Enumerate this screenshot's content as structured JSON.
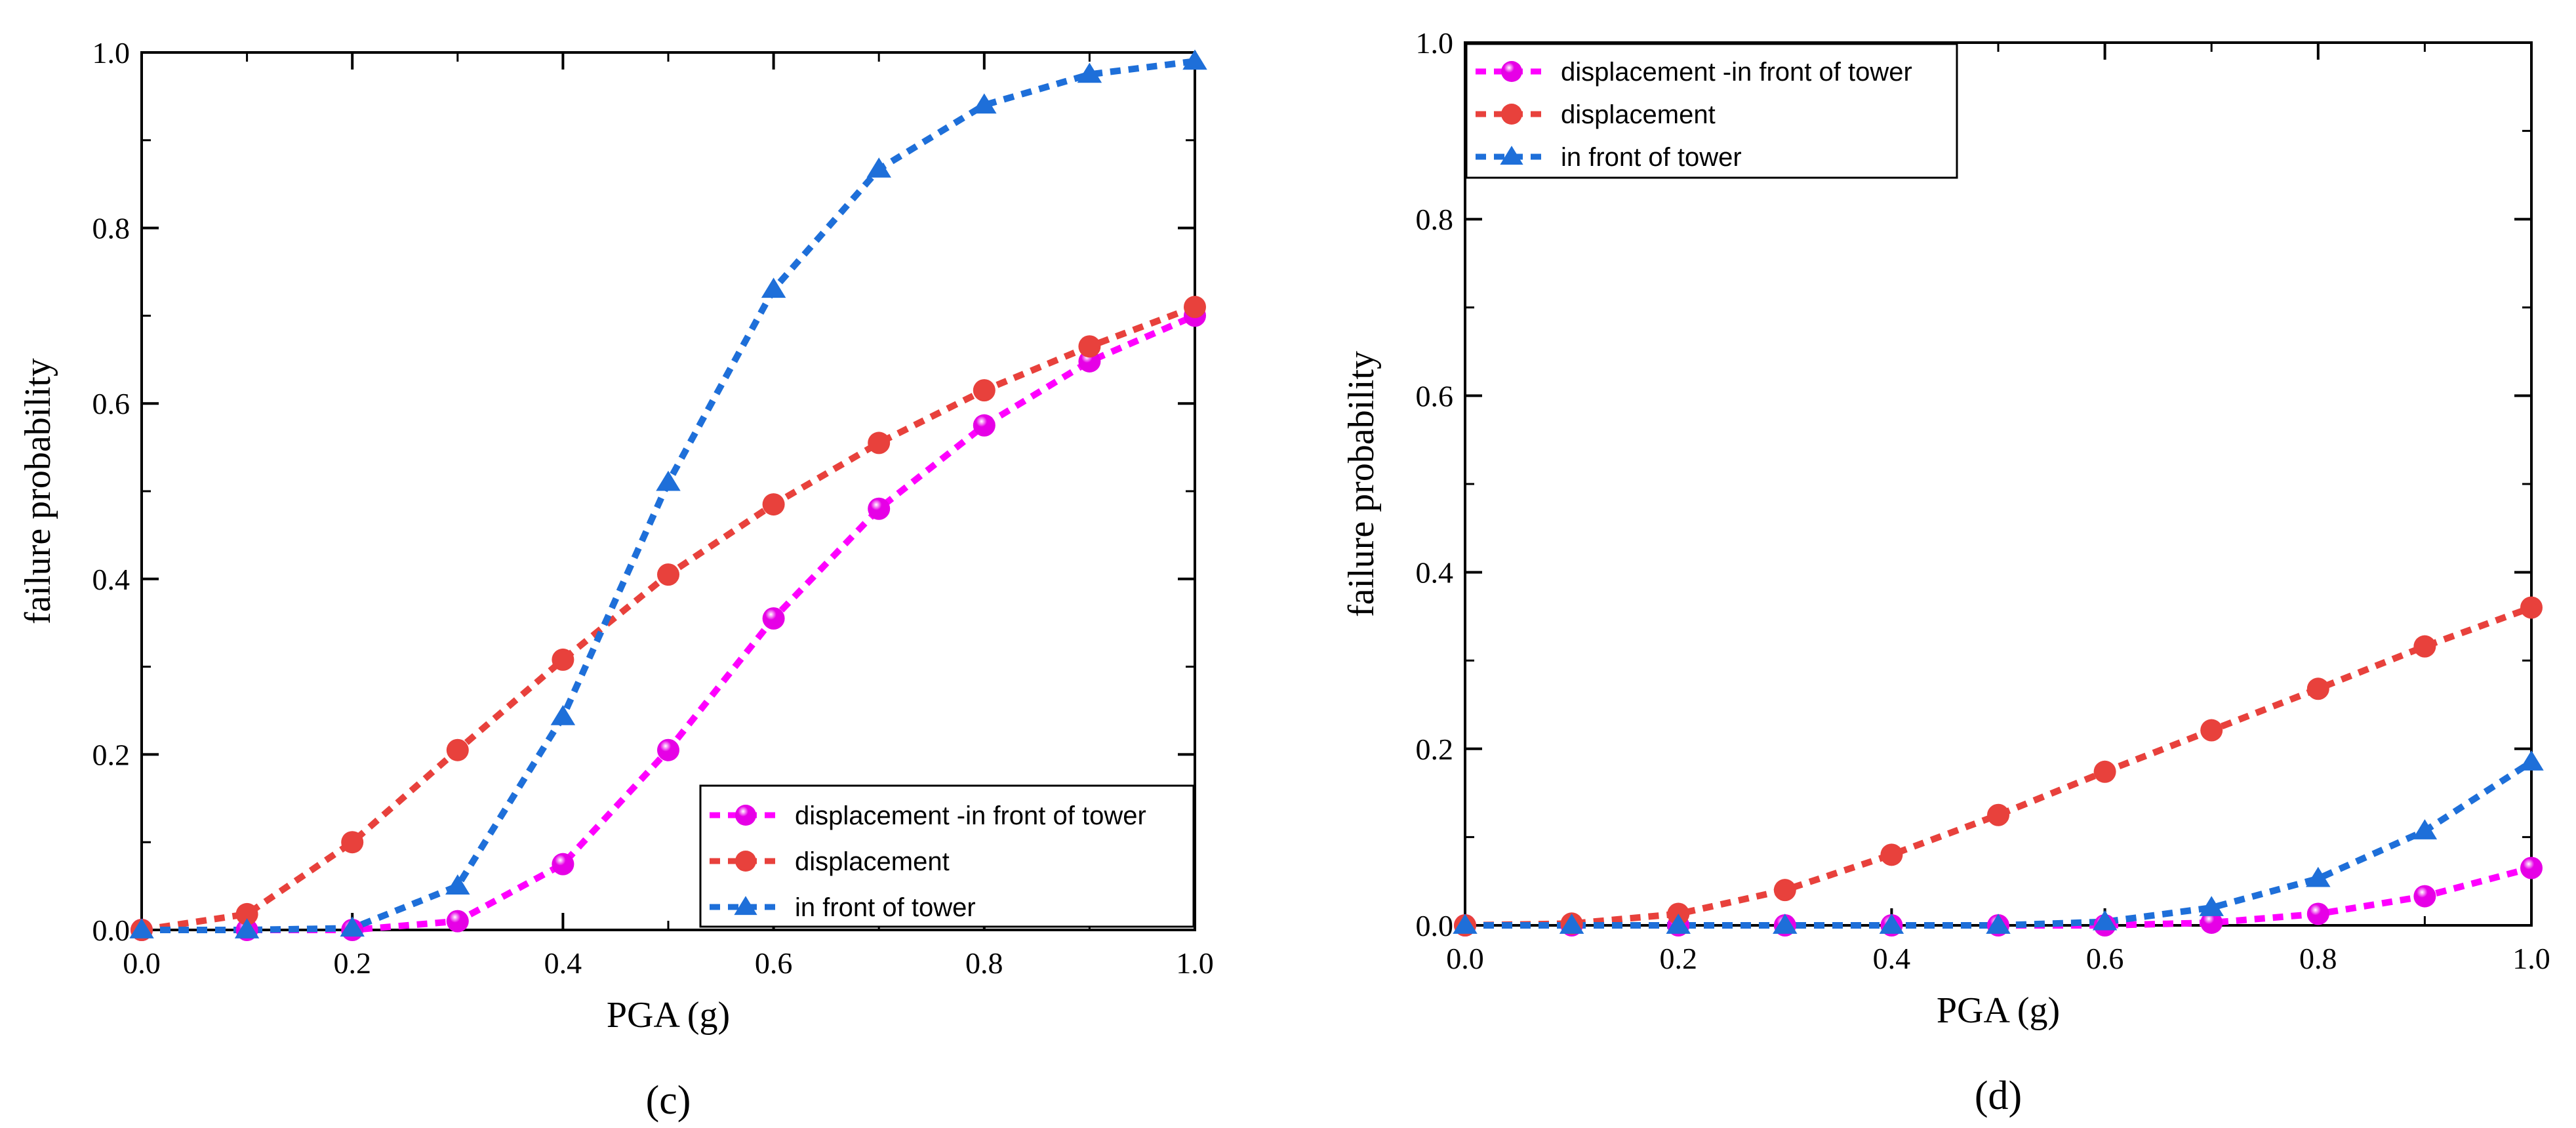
{
  "chart_data": [
    {
      "type": "line",
      "panel_label": "(c)",
      "xlabel": "PGA (g)",
      "ylabel": "failure probability",
      "xlim": [
        0.0,
        1.0
      ],
      "ylim": [
        0.0,
        1.0
      ],
      "x_ticks": [
        "0.0",
        "0.2",
        "0.4",
        "0.6",
        "0.8",
        "1.0"
      ],
      "y_ticks": [
        "0.0",
        "0.2",
        "0.4",
        "0.6",
        "0.8",
        "1.0"
      ],
      "legend_position": "bottom-right",
      "x": [
        0.0,
        0.1,
        0.2,
        0.3,
        0.4,
        0.5,
        0.6,
        0.7,
        0.8,
        0.9,
        1.0
      ],
      "series": [
        {
          "name": "displacement -in front of  tower",
          "color": "#ff00ff",
          "marker": "sphere",
          "values": [
            0.0,
            0.0,
            0.0,
            0.01,
            0.075,
            0.205,
            0.355,
            0.48,
            0.575,
            0.648,
            0.7
          ]
        },
        {
          "name": "displacement",
          "color": "#e8413c",
          "marker": "circle",
          "values": [
            0.0,
            0.018,
            0.1,
            0.205,
            0.308,
            0.405,
            0.485,
            0.555,
            0.615,
            0.665,
            0.71
          ]
        },
        {
          "name": "in front of  tower",
          "color": "#1e6fd9",
          "marker": "triangle",
          "values": [
            0.0,
            0.0,
            0.002,
            0.05,
            0.243,
            0.51,
            0.73,
            0.867,
            0.94,
            0.975,
            0.99
          ]
        }
      ]
    },
    {
      "type": "line",
      "panel_label": "(d)",
      "xlabel": "PGA (g)",
      "ylabel": "failure probability",
      "xlim": [
        0.0,
        1.0
      ],
      "ylim": [
        0.0,
        1.0
      ],
      "x_ticks": [
        "0.0",
        "0.2",
        "0.4",
        "0.6",
        "0.8",
        "1.0"
      ],
      "y_ticks": [
        "0.0",
        "0.2",
        "0.4",
        "0.6",
        "0.8",
        "1.0"
      ],
      "legend_position": "top-left",
      "x": [
        0.0,
        0.1,
        0.2,
        0.3,
        0.4,
        0.5,
        0.6,
        0.7,
        0.8,
        0.9,
        1.0
      ],
      "series": [
        {
          "name": "displacement -in front of tower",
          "color": "#ff00ff",
          "marker": "sphere",
          "values": [
            0.0,
            0.0,
            0.0,
            0.0,
            0.0,
            0.0,
            0.0,
            0.003,
            0.013,
            0.033,
            0.065
          ]
        },
        {
          "name": "displacement",
          "color": "#e8413c",
          "marker": "circle",
          "values": [
            0.0,
            0.002,
            0.013,
            0.04,
            0.08,
            0.125,
            0.174,
            0.221,
            0.268,
            0.316,
            0.36
          ]
        },
        {
          "name": "in front of tower",
          "color": "#1e6fd9",
          "marker": "triangle",
          "values": [
            0.0,
            0.0,
            0.0,
            0.0,
            0.0,
            0.0,
            0.004,
            0.02,
            0.053,
            0.107,
            0.185
          ]
        }
      ]
    }
  ]
}
